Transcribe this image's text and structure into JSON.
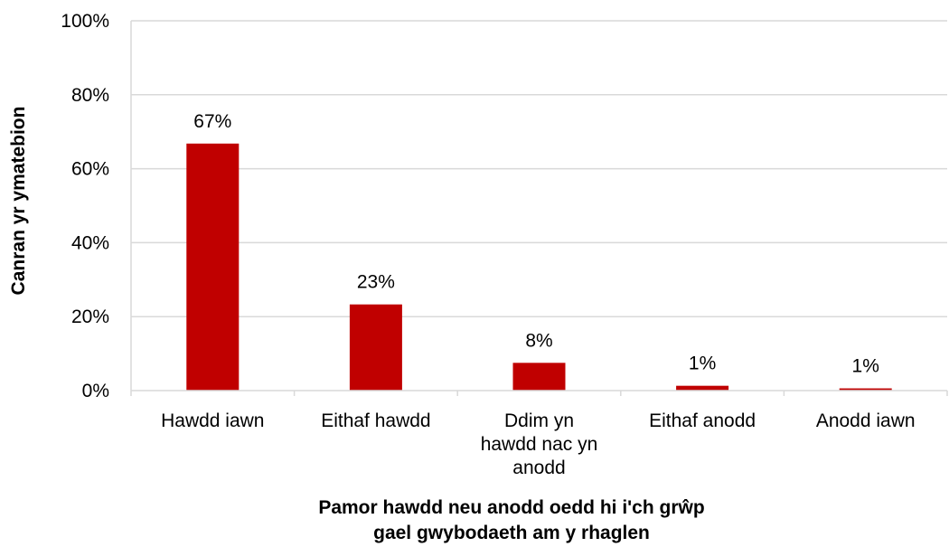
{
  "chart_data": {
    "type": "bar",
    "categories": [
      "Hawdd iawn",
      "Eithaf hawdd",
      "Ddim yn hawdd nac yn anodd",
      "Eithaf anodd",
      "Anodd iawn"
    ],
    "category_label_lines": [
      [
        "Hawdd iawn"
      ],
      [
        "Eithaf hawdd"
      ],
      [
        "Ddim yn",
        "hawdd nac yn",
        "anodd"
      ],
      [
        "Eithaf anodd"
      ],
      [
        "Anodd iawn"
      ]
    ],
    "values": [
      66.8,
      23.3,
      7.5,
      1.3,
      0.6
    ],
    "data_labels": [
      "67%",
      "23%",
      "8%",
      "1%",
      "1%"
    ],
    "xlabel_lines": [
      "Pamor hawdd neu anodd oedd hi i'ch grŵp",
      "gael gwybodaeth am y rhaglen"
    ],
    "ylabel": "Canran yr ymatebion",
    "ylim": [
      0,
      100
    ],
    "yticks": [
      0,
      20,
      40,
      60,
      80,
      100
    ],
    "ytick_labels": [
      "0%",
      "20%",
      "40%",
      "60%",
      "80%",
      "100%"
    ],
    "grid": true,
    "bar_color": "#c00000",
    "grid_color": "#d9d9d9"
  }
}
